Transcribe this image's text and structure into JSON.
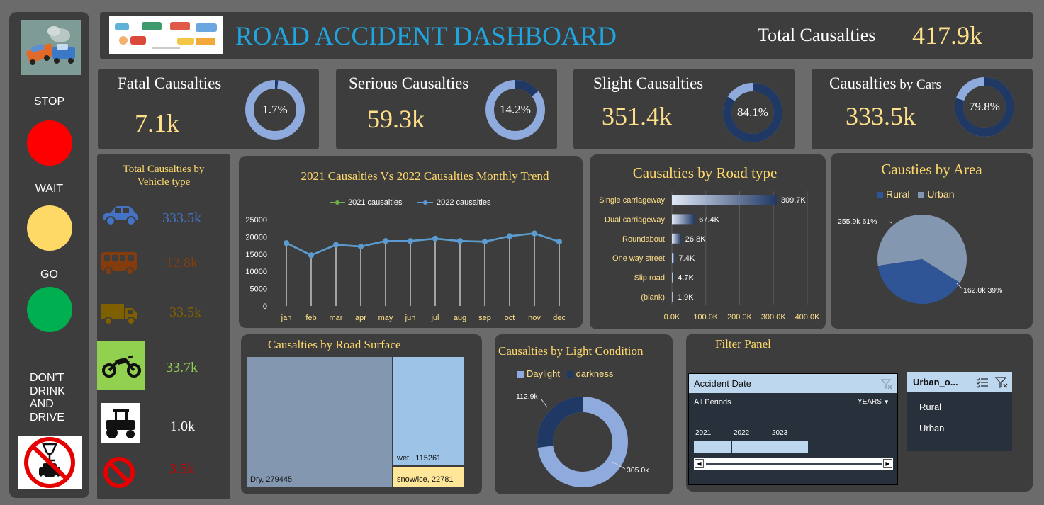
{
  "header": {
    "title": "ROAD ACCIDENT DASHBOARD",
    "total_label": "Total Causalties",
    "total_value": "417.9k"
  },
  "sidebar": {
    "stop": "STOP",
    "wait": "WAIT",
    "go": "GO",
    "dont_drink_lines": [
      "DON'T",
      "DRINK",
      "AND",
      "DRIVE"
    ]
  },
  "kpis": [
    {
      "title": "Fatal Causalties",
      "value": "7.1k",
      "percent_label": "1.7%",
      "percent": 1.7
    },
    {
      "title": "Serious Causalties",
      "value": "59.3k",
      "percent_label": "14.2%",
      "percent": 14.2
    },
    {
      "title": "Slight Causalties",
      "value": "351.4k",
      "percent_label": "84.1%",
      "percent": 84.1
    },
    {
      "title_main": "Causalties",
      "title_small": " by Cars",
      "value": "333.5k",
      "percent_label": "79.8%",
      "percent": 79.8
    }
  ],
  "vehicles": {
    "title_line1": "Total Causalties by",
    "title_line2": "Vehicle type",
    "items": [
      {
        "icon": "car-icon",
        "value": "333.5k",
        "color": "#4472c4"
      },
      {
        "icon": "bus-icon",
        "value": "12.8k",
        "color": "#843c0c"
      },
      {
        "icon": "truck-icon",
        "value": "33.5k",
        "color": "#7f6000"
      },
      {
        "icon": "motorcycle-icon",
        "value": "33.7k",
        "color": "#92d050"
      },
      {
        "icon": "tractor-icon",
        "value": "1.0k",
        "color": "#ffffff"
      },
      {
        "icon": "no-entry-icon",
        "value": "3.5k",
        "color": "#c00000"
      }
    ]
  },
  "colors": {
    "donut_light": "#8faadc",
    "donut_dark": "#203864",
    "panel": "#3d3d3d",
    "line_series": "#5b9bd5",
    "legend_2021": "#70ad47",
    "bar_dark": "#203864",
    "rural": "#2f5597",
    "urban": "#8497b0",
    "dry": "#8497b0",
    "wet": "#9dc3e6",
    "snow": "#ffe699"
  },
  "chart_data": [
    {
      "type": "line",
      "title": "2021 Causalties Vs 2022 Causalties Monthly Trend",
      "categories": [
        "jan",
        "feb",
        "mar",
        "apr",
        "may",
        "jun",
        "jul",
        "aug",
        "sep",
        "oct",
        "nov",
        "dec"
      ],
      "series": [
        {
          "name": "2021 causalties",
          "values": [
            18200,
            14700,
            17700,
            17200,
            18800,
            18800,
            19500,
            18800,
            18600,
            20200,
            21000,
            18600
          ]
        },
        {
          "name": "2022 causalties",
          "values": [
            18200,
            14700,
            17700,
            17200,
            18800,
            18800,
            19500,
            18800,
            18600,
            20200,
            21000,
            18600
          ]
        }
      ],
      "yticks": [
        0,
        5000,
        10000,
        15000,
        20000,
        25000
      ],
      "ylim": [
        0,
        25000
      ]
    },
    {
      "type": "bar",
      "orientation": "horizontal",
      "title": "Causalties by Road type",
      "categories": [
        "Single carriageway",
        "Dual carriageway",
        "Roundabout",
        "One way street",
        "Slip road",
        "(blank)"
      ],
      "values": [
        309700,
        67400,
        26800,
        7400,
        4700,
        1900
      ],
      "value_labels": [
        "309.7K",
        "67.4K",
        "26.8K",
        "7.4K",
        "4.7K",
        "1.9K"
      ],
      "xticks": [
        "0.0K",
        "100.0K",
        "200.0K",
        "300.0K",
        "400.0K"
      ],
      "xlim": [
        0,
        400000
      ]
    },
    {
      "type": "pie",
      "title": "Causties by Area",
      "legend": [
        "Rural",
        "Urban"
      ],
      "slices": [
        {
          "name": "Urban",
          "value": 255.9,
          "label": "255.9k 61%"
        },
        {
          "name": "Rural",
          "value": 162.0,
          "label": "162.0k 39%"
        }
      ]
    },
    {
      "type": "treemap",
      "title": "Causalties by Road Surface",
      "items": [
        {
          "name": "Dry",
          "value": 279445,
          "label": "Dry, 279445"
        },
        {
          "name": "wet",
          "value": 115261,
          "label": "wet , 115261"
        },
        {
          "name": "snow/ice",
          "value": 22781,
          "label": "snow/ice, 22781"
        }
      ]
    },
    {
      "type": "doughnut",
      "title": "Causalties by Light Condition",
      "legend": [
        "Daylight",
        "darkness"
      ],
      "slices": [
        {
          "name": "Daylight",
          "value": 305.0,
          "label": "305.0k"
        },
        {
          "name": "darkness",
          "value": 112.9,
          "label": "112.9k"
        }
      ]
    }
  ],
  "filter": {
    "title": "Filter Panel",
    "date_slicer": {
      "header": "Accident Date",
      "periods": "All Periods",
      "level": "YEARS",
      "years": [
        "2021",
        "2022",
        "2023"
      ]
    },
    "urban_slicer": {
      "header": "Urban_o...",
      "items": [
        "Rural",
        "Urban"
      ]
    }
  }
}
